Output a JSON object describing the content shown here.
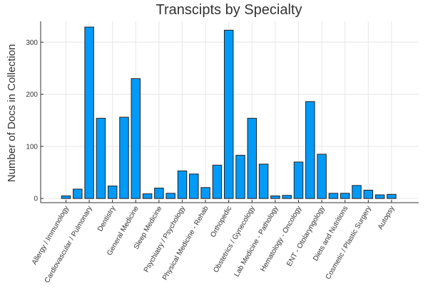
{
  "chart_data": {
    "type": "bar",
    "title": "Transcipts by Specialty",
    "xlabel": "",
    "ylabel": "Number of Docs in Collection",
    "ylim": [
      -8,
      340
    ],
    "yticks": [
      0,
      100,
      200,
      300
    ],
    "grid": true,
    "bar_color": "#009af9",
    "categories": [
      "Allergy / Immunology",
      "",
      "Cardiovascular / Pulmonary",
      "",
      "Dentistry",
      "",
      "General Medicine",
      "",
      "Sleep Medicine",
      "",
      "Psychiatry / Psychology",
      "",
      "Physical Medicine - Rehab",
      "",
      "Orthopedic",
      "",
      "Obstetrics / Gynecology",
      "",
      "Lab Medicine - Pathology",
      "",
      "Hematology - Oncology",
      "",
      "ENT - Otolaryngology",
      "",
      "Diets and Nutritions",
      "",
      "Cosmetic / Plastic Surgery",
      "",
      "Autopsy"
    ],
    "values": [
      5,
      18,
      329,
      154,
      24,
      156,
      230,
      9,
      20,
      10,
      53,
      47,
      21,
      64,
      323,
      83,
      154,
      66,
      5,
      6,
      70,
      186,
      85,
      10,
      10,
      25,
      16,
      7,
      8
    ]
  }
}
